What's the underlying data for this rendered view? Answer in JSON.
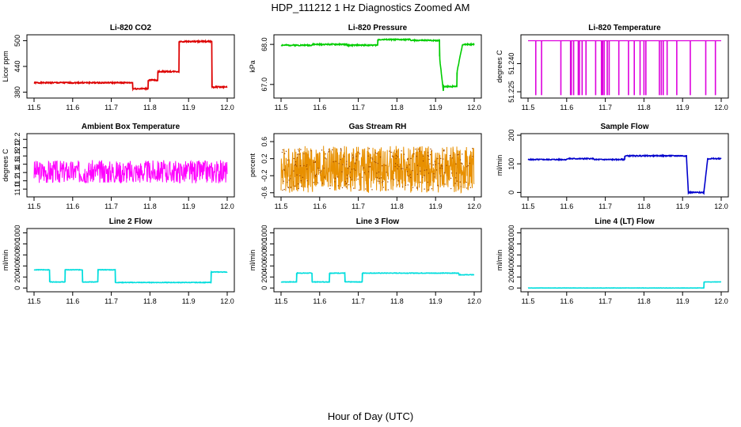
{
  "title": "HDP_111212  1 Hz Diagnostics Zoomed AM",
  "xlabel": "Hour of Day (UTC)",
  "chart_data": [
    {
      "type": "line",
      "title": "Li-820 CO2",
      "ylabel": "Licor ppm",
      "xlim": [
        11.5,
        12.0
      ],
      "ylim": [
        370,
        510
      ],
      "xticks": [
        11.5,
        11.6,
        11.7,
        11.8,
        11.9,
        12.0
      ],
      "xtick_labels": [
        "11.5",
        "11.6",
        "11.7",
        "11.8",
        "11.9",
        "12.0"
      ],
      "yticks": [
        380,
        440,
        500
      ],
      "ytick_labels": [
        "380",
        "440",
        "500"
      ],
      "color": "#dd0000",
      "noise": 1.5,
      "noise_seed": 1,
      "series": [
        {
          "x": [
            11.5,
            11.755,
            11.755,
            11.795,
            11.795,
            11.82,
            11.82,
            11.875,
            11.875,
            11.96,
            11.96,
            12.0
          ],
          "y": [
            402,
            402,
            388,
            388,
            408,
            408,
            428,
            428,
            498,
            498,
            392,
            392
          ]
        }
      ]
    },
    {
      "type": "line",
      "title": "Li-820 Pressure",
      "ylabel": "kPa",
      "xlim": [
        11.5,
        12.0
      ],
      "ylim": [
        66.7,
        68.2
      ],
      "xticks": [
        11.5,
        11.6,
        11.7,
        11.8,
        11.9,
        12.0
      ],
      "xtick_labels": [
        "11.5",
        "11.6",
        "11.7",
        "11.8",
        "11.9",
        "12.0"
      ],
      "yticks": [
        67.0,
        68.0
      ],
      "ytick_labels": [
        "67.0",
        "68.0"
      ],
      "color": "#00cc00",
      "noise": 0.015,
      "noise_seed": 2,
      "series": [
        {
          "x": [
            11.5,
            11.58,
            11.58,
            11.67,
            11.67,
            11.75,
            11.75,
            11.835,
            11.835,
            11.91,
            11.91,
            11.92,
            11.92,
            11.955,
            11.955,
            11.97,
            11.97,
            12.0
          ],
          "y": [
            67.98,
            67.98,
            68.0,
            68.0,
            67.98,
            67.98,
            68.12,
            68.12,
            68.1,
            68.1,
            67.7,
            66.85,
            66.95,
            66.95,
            67.3,
            68.0,
            68.0,
            68.0
          ]
        }
      ]
    },
    {
      "type": "line",
      "title": "Li-820 Temperature",
      "ylabel": "degrees C",
      "xlim": [
        11.5,
        12.0
      ],
      "ylim": [
        51.2225,
        51.2545
      ],
      "xticks": [
        11.5,
        11.6,
        11.7,
        11.8,
        11.9,
        12.0
      ],
      "xtick_labels": [
        "11.5",
        "11.6",
        "11.7",
        "11.8",
        "11.9",
        "12.0"
      ],
      "yticks": [
        51.225,
        51.24
      ],
      "ytick_labels": [
        "51.225",
        "51.240"
      ],
      "color": "#dd00dd",
      "base": 51.2522,
      "low": 51.2232,
      "drops": [
        11.52,
        11.535,
        11.585,
        11.61,
        11.612,
        11.618,
        11.63,
        11.633,
        11.64,
        11.65,
        11.675,
        11.69,
        11.693,
        11.697,
        11.705,
        11.71,
        11.735,
        11.76,
        11.775,
        11.79,
        11.8,
        11.805,
        11.84,
        11.845,
        11.85,
        11.86,
        11.885,
        11.92,
        11.96,
        11.985
      ]
    },
    {
      "type": "line",
      "title": "Ambient Box Temperature",
      "ylabel": "degrees C",
      "xlim": [
        11.5,
        12.0
      ],
      "ylim": [
        10.85,
        12.3
      ],
      "xticks": [
        11.5,
        11.6,
        11.7,
        11.8,
        11.9,
        12.0
      ],
      "xtick_labels": [
        "11.5",
        "11.6",
        "11.7",
        "11.8",
        "11.9",
        "12.0"
      ],
      "yticks": [
        11.0,
        11.2,
        11.4,
        11.6,
        11.8,
        12.0,
        12.2
      ],
      "ytick_labels": [
        "11.0",
        "11.2",
        "11.4",
        "11.6",
        "11.8",
        "12.0",
        "12.2"
      ],
      "color": "#ff00ff",
      "noise": 0.28,
      "noise_seed": 3,
      "points": 520,
      "series": [
        {
          "x": [
            11.5,
            12.0
          ],
          "y": [
            11.42,
            11.42
          ]
        }
      ]
    },
    {
      "type": "line",
      "title": "Gas Stream RH",
      "ylabel": "percent",
      "xlim": [
        11.5,
        12.0
      ],
      "ylim": [
        -0.66,
        0.75
      ],
      "xticks": [
        11.5,
        11.6,
        11.7,
        11.8,
        11.9,
        12.0
      ],
      "xtick_labels": [
        "11.5",
        "11.6",
        "11.7",
        "11.8",
        "11.9",
        "12.0"
      ],
      "yticks": [
        -0.6,
        -0.2,
        0.2,
        0.6
      ],
      "ytick_labels": [
        "-0.6",
        "-0.2",
        "0.2",
        "0.6"
      ],
      "color": "#e89000",
      "marker_color": "#994400",
      "noise": 0.55,
      "noise_seed": 4,
      "points": 700,
      "series": [
        {
          "x": [
            11.5,
            12.0
          ],
          "y": [
            -0.05,
            -0.05
          ]
        }
      ]
    },
    {
      "type": "line",
      "title": "Sample Flow",
      "ylabel": "ml/min",
      "xlim": [
        11.5,
        12.0
      ],
      "ylim": [
        -10,
        200
      ],
      "xticks": [
        11.5,
        11.6,
        11.7,
        11.8,
        11.9,
        12.0
      ],
      "xtick_labels": [
        "11.5",
        "11.6",
        "11.7",
        "11.8",
        "11.9",
        "12.0"
      ],
      "yticks": [
        0,
        100,
        200
      ],
      "ytick_labels": [
        "0",
        "100",
        "200"
      ],
      "color": "#0000cc",
      "noise": 1.8,
      "noise_seed": 5,
      "series": [
        {
          "x": [
            11.5,
            11.6,
            11.6,
            11.67,
            11.67,
            11.75,
            11.75,
            11.91,
            11.91,
            11.915,
            11.915,
            11.955,
            11.955,
            11.965,
            11.965,
            12.0
          ],
          "y": [
            115,
            115,
            118,
            118,
            115,
            115,
            128,
            128,
            125,
            0,
            0,
            0,
            0,
            118,
            118,
            118
          ]
        }
      ]
    },
    {
      "type": "line",
      "title": "Line 2 Flow",
      "ylabel": "ml/min",
      "xlim": [
        11.5,
        12.0
      ],
      "ylim": [
        -40,
        1050
      ],
      "xticks": [
        11.5,
        11.6,
        11.7,
        11.8,
        11.9,
        12.0
      ],
      "xtick_labels": [
        "11.5",
        "11.6",
        "11.7",
        "11.8",
        "11.9",
        "12.0"
      ],
      "yticks": [
        0,
        200,
        400,
        600,
        800,
        1000
      ],
      "ytick_labels": [
        "0",
        "200",
        "400",
        "600",
        "800",
        "1000"
      ],
      "color": "#00dddd",
      "noise": 5,
      "noise_seed": 6,
      "series": [
        {
          "x": [
            11.5,
            11.54,
            11.54,
            11.58,
            11.58,
            11.625,
            11.625,
            11.665,
            11.665,
            11.71,
            11.71,
            11.958,
            11.958,
            12.0
          ],
          "y": [
            330,
            330,
            110,
            110,
            330,
            330,
            110,
            110,
            330,
            330,
            100,
            100,
            290,
            290
          ]
        }
      ]
    },
    {
      "type": "line",
      "title": "Line 3 Flow",
      "ylabel": "ml/min",
      "xlim": [
        11.5,
        12.0
      ],
      "ylim": [
        -40,
        1050
      ],
      "xticks": [
        11.5,
        11.6,
        11.7,
        11.8,
        11.9,
        12.0
      ],
      "xtick_labels": [
        "11.5",
        "11.6",
        "11.7",
        "11.8",
        "11.9",
        "12.0"
      ],
      "yticks": [
        0,
        200,
        400,
        600,
        800,
        1000
      ],
      "ytick_labels": [
        "0",
        "200",
        "400",
        "600",
        "800",
        "1000"
      ],
      "color": "#00dddd",
      "noise": 5,
      "noise_seed": 7,
      "series": [
        {
          "x": [
            11.5,
            11.54,
            11.54,
            11.58,
            11.58,
            11.625,
            11.625,
            11.665,
            11.665,
            11.71,
            11.71,
            11.96,
            11.96,
            12.0
          ],
          "y": [
            110,
            110,
            270,
            270,
            110,
            110,
            270,
            270,
            110,
            110,
            270,
            270,
            240,
            240
          ]
        }
      ]
    },
    {
      "type": "line",
      "title": "Line 4 (LT) Flow",
      "ylabel": "ml/min",
      "xlim": [
        11.5,
        12.0
      ],
      "ylim": [
        -40,
        1050
      ],
      "xticks": [
        11.5,
        11.6,
        11.7,
        11.8,
        11.9,
        12.0
      ],
      "xtick_labels": [
        "11.5",
        "11.6",
        "11.7",
        "11.8",
        "11.9",
        "12.0"
      ],
      "yticks": [
        0,
        200,
        400,
        600,
        800,
        1000
      ],
      "ytick_labels": [
        "0",
        "200",
        "400",
        "600",
        "800",
        "1000"
      ],
      "color": "#00dddd",
      "noise": 2,
      "noise_seed": 8,
      "series": [
        {
          "x": [
            11.5,
            11.955,
            11.955,
            12.0
          ],
          "y": [
            0,
            0,
            110,
            110
          ]
        }
      ]
    }
  ]
}
